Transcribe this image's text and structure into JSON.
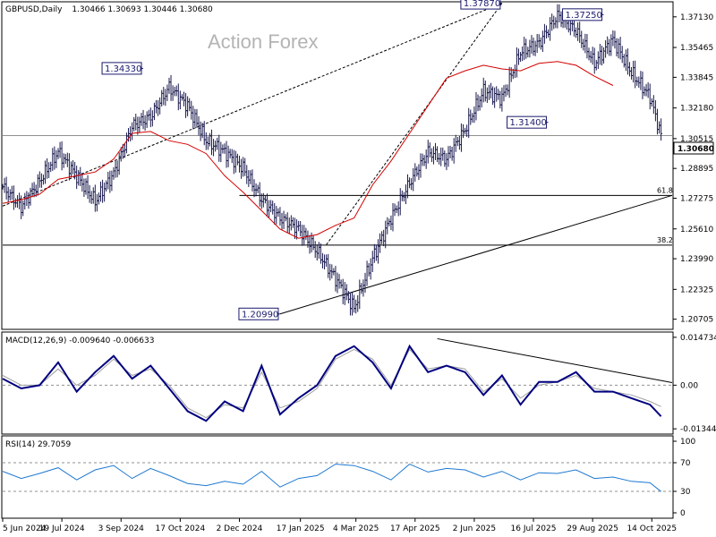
{
  "header": {
    "symbol": "GBPUSD,Daily",
    "ohlc": "1.30466 1.30693 1.30446 1.30680"
  },
  "watermark": "Action Forex",
  "colors": {
    "price": "#1a1a4e",
    "sma": "#d40000",
    "macd": "#000080",
    "signal": "#a0a0a0",
    "rsi": "#1e78d2",
    "grid": "#909090"
  },
  "chart_data": {
    "type": "line",
    "price_panel": {
      "ylim": [
        1.2025,
        1.3785
      ],
      "yticks": [
        "1.37130",
        "1.35465",
        "1.33845",
        "1.32180",
        "1.30515",
        "1.28895",
        "1.27275",
        "1.25610",
        "1.23990",
        "1.22325",
        "1.20705"
      ],
      "ytick_values": [
        1.3713,
        1.35465,
        1.33845,
        1.3218,
        1.30515,
        1.28895,
        1.27275,
        1.2561,
        1.2399,
        1.22325,
        1.20705
      ],
      "current_price": "1.30680",
      "current_value": 1.3068,
      "x": [
        0,
        10,
        20,
        30,
        40,
        50,
        60,
        70,
        80,
        90,
        100,
        110,
        120,
        130,
        140,
        150,
        160,
        170,
        180,
        190,
        200,
        210,
        220,
        230,
        240,
        250,
        260,
        270,
        280,
        290,
        300,
        310,
        320,
        330,
        340,
        350,
        356
      ],
      "close": [
        1.279,
        1.268,
        1.282,
        1.298,
        1.285,
        1.271,
        1.286,
        1.312,
        1.317,
        1.333,
        1.323,
        1.304,
        1.298,
        1.289,
        1.272,
        1.262,
        1.256,
        1.244,
        1.229,
        1.213,
        1.24,
        1.262,
        1.281,
        1.298,
        1.294,
        1.31,
        1.331,
        1.327,
        1.352,
        1.357,
        1.372,
        1.364,
        1.346,
        1.359,
        1.341,
        1.328,
        1.3068
      ],
      "sma": [
        1.27,
        1.272,
        1.275,
        1.283,
        1.285,
        1.287,
        1.294,
        1.308,
        1.309,
        1.304,
        1.302,
        1.297,
        1.285,
        1.276,
        1.266,
        1.256,
        1.251,
        1.253,
        1.258,
        1.262,
        1.28,
        1.293,
        1.308,
        1.323,
        1.338,
        1.342,
        1.345,
        1.343,
        1.342,
        1.346,
        1.347,
        1.345,
        1.339,
        1.334
      ],
      "sma_x": [
        0,
        10,
        20,
        30,
        40,
        50,
        60,
        70,
        80,
        90,
        100,
        110,
        120,
        130,
        140,
        150,
        160,
        170,
        180,
        190,
        200,
        210,
        220,
        230,
        240,
        250,
        260,
        270,
        280,
        290,
        300,
        310,
        320,
        330
      ],
      "annotations": [
        {
          "label": "1.34330",
          "x": 76,
          "value": 1.3433
        },
        {
          "label": "1.20990",
          "x": 150,
          "value": 1.2099
        },
        {
          "label": "1.37870",
          "x": 270,
          "value": 1.3787
        },
        {
          "label": "1.31400",
          "x": 295,
          "value": 1.314
        },
        {
          "label": "1.37250",
          "x": 325,
          "value": 1.3725
        }
      ],
      "fib_levels": [
        {
          "label": "61.8",
          "value": 1.2743
        },
        {
          "label": "38.2",
          "value": 1.2473
        }
      ],
      "trendlines": [
        {
          "style": "dashed",
          "from": [
            0,
            1.2685
          ],
          "to": [
            270,
            1.3787
          ]
        },
        {
          "style": "dashed",
          "from": [
            175,
            1.2475
          ],
          "to": [
            270,
            1.3787
          ]
        },
        {
          "style": "solid",
          "from": [
            150,
            1.2099
          ],
          "to": [
            362,
            1.2743
          ]
        }
      ]
    },
    "macd_panel": {
      "title": "MACD(12,26,9) -0.009640 -0.006633",
      "yticks": [
        "0.014734",
        "0.00",
        "-0.013442"
      ],
      "ytick_values": [
        0.014734,
        0.0,
        -0.013442
      ],
      "ylim": [
        -0.0145,
        0.0158
      ],
      "x": [
        0,
        10,
        20,
        30,
        40,
        50,
        60,
        70,
        80,
        90,
        100,
        110,
        120,
        130,
        140,
        150,
        160,
        170,
        180,
        190,
        200,
        210,
        220,
        230,
        240,
        250,
        260,
        270,
        280,
        290,
        300,
        310,
        320,
        330,
        340,
        350,
        356
      ],
      "macd": [
        0.002,
        -0.001,
        0.0,
        0.007,
        -0.002,
        0.004,
        0.009,
        0.002,
        0.006,
        -0.001,
        -0.008,
        -0.011,
        -0.005,
        -0.008,
        0.006,
        -0.009,
        -0.004,
        0.0,
        0.009,
        0.012,
        0.007,
        -0.001,
        0.012,
        0.004,
        0.006,
        0.004,
        -0.003,
        0.003,
        -0.006,
        0.001,
        0.001,
        0.004,
        -0.002,
        -0.002,
        -0.004,
        -0.006,
        -0.0096
      ],
      "signal": [
        0.003,
        0.0,
        0.0,
        0.005,
        0.0,
        0.003,
        0.008,
        0.003,
        0.005,
        0.0,
        -0.007,
        -0.01,
        -0.006,
        -0.007,
        0.004,
        -0.007,
        -0.005,
        -0.001,
        0.008,
        0.011,
        0.008,
        0.0,
        0.011,
        0.005,
        0.006,
        0.005,
        -0.002,
        0.002,
        -0.004,
        0.0,
        0.001,
        0.003,
        -0.001,
        -0.002,
        -0.003,
        -0.005,
        -0.0066
      ],
      "trendline": {
        "from": [
          235,
          0.0143
        ],
        "to": [
          362,
          0.0008
        ]
      }
    },
    "rsi_panel": {
      "title": "RSI(14) 29.7059",
      "yticks": [
        "100",
        "70",
        "30",
        "0"
      ],
      "ytick_values": [
        100,
        70,
        30,
        0
      ],
      "ylim": [
        -5,
        105
      ],
      "x": [
        0,
        10,
        20,
        30,
        40,
        50,
        60,
        70,
        80,
        90,
        100,
        110,
        120,
        130,
        140,
        150,
        160,
        170,
        180,
        190,
        200,
        210,
        220,
        230,
        240,
        250,
        260,
        270,
        280,
        290,
        300,
        310,
        320,
        330,
        340,
        350,
        356
      ],
      "values": [
        58,
        48,
        55,
        63,
        46,
        60,
        66,
        48,
        62,
        52,
        41,
        38,
        44,
        40,
        58,
        36,
        48,
        52,
        68,
        66,
        58,
        46,
        68,
        57,
        62,
        60,
        50,
        58,
        46,
        56,
        55,
        60,
        48,
        50,
        44,
        42,
        29.7
      ]
    },
    "xaxis": {
      "labels": [
        "5 Jun 2024",
        "19 Jul 2024",
        "3 Sep 2024",
        "17 Oct 2024",
        "2 Dec 2024",
        "17 Jan 2025",
        "4 Mar 2025",
        "17 Apr 2025",
        "2 Jun 2025",
        "16 Jul 2025",
        "29 Aug 2025",
        "14 Oct 2025"
      ],
      "positions": [
        0,
        32,
        64,
        96,
        128,
        161,
        191,
        223,
        255,
        287,
        319,
        351
      ],
      "range": [
        0,
        362
      ]
    }
  }
}
